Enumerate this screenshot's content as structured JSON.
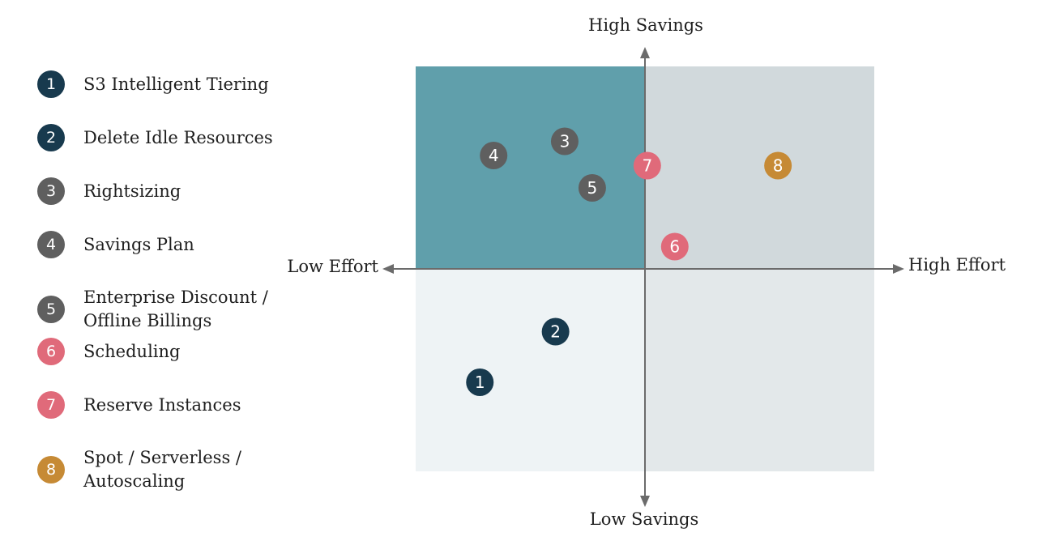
{
  "colors": {
    "navy": "#183a4e",
    "gray": "#5f5f5f",
    "pink": "#e06a7a",
    "gold": "#c68a35",
    "quadrant_top_left": "#609fab",
    "quadrant_top_right": "#d1d9dc",
    "quadrant_bottom_left": "#eef3f5",
    "quadrant_bottom_right": "#e3e8ea",
    "axis": "#6b6b6b"
  },
  "legend": [
    {
      "number": "1",
      "label": "S3 Intelligent Tiering",
      "color": "navy"
    },
    {
      "number": "2",
      "label": "Delete Idle Resources",
      "color": "navy"
    },
    {
      "number": "3",
      "label": "Rightsizing",
      "color": "gray"
    },
    {
      "number": "4",
      "label": "Savings Plan",
      "color": "gray"
    },
    {
      "number": "5",
      "label": "Enterprise Discount /\nOffline Billings",
      "color": "gray"
    },
    {
      "number": "6",
      "label": "Scheduling",
      "color": "pink"
    },
    {
      "number": "7",
      "label": "Reserve Instances",
      "color": "pink"
    },
    {
      "number": "8",
      "label": "Spot / Serverless /\nAutoscaling",
      "color": "gold"
    }
  ],
  "axes": {
    "top": "High Savings",
    "bottom": "Low Savings",
    "left": "Low Effort",
    "right": "High Effort"
  },
  "points": [
    {
      "number": "1",
      "effort": -0.72,
      "savings": -0.56,
      "color": "navy"
    },
    {
      "number": "2",
      "effort": -0.39,
      "savings": -0.31,
      "color": "navy"
    },
    {
      "number": "3",
      "effort": -0.35,
      "savings": 0.63,
      "color": "gray"
    },
    {
      "number": "4",
      "effort": -0.66,
      "savings": 0.56,
      "color": "gray"
    },
    {
      "number": "5",
      "effort": -0.23,
      "savings": 0.4,
      "color": "gray"
    },
    {
      "number": "6",
      "effort": 0.13,
      "savings": 0.11,
      "color": "pink"
    },
    {
      "number": "7",
      "effort": 0.01,
      "savings": 0.51,
      "color": "pink"
    },
    {
      "number": "8",
      "effort": 0.58,
      "savings": 0.51,
      "color": "gold"
    }
  ]
}
